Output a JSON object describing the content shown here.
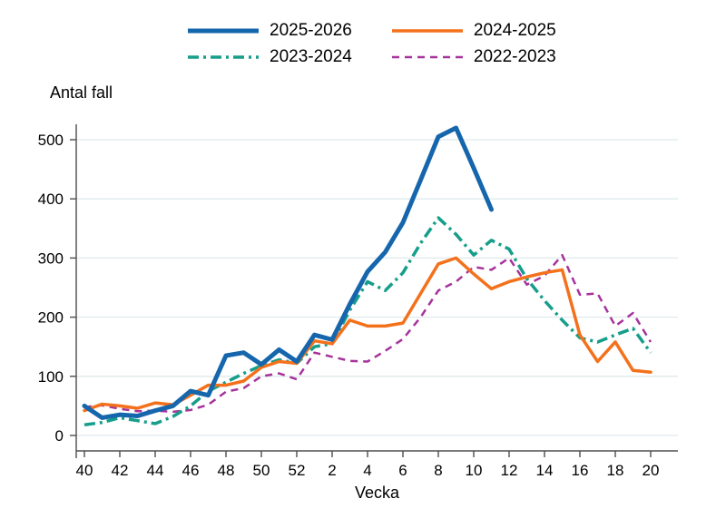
{
  "header": {
    "y_axis_title": "Antal fall",
    "x_axis_title": "Vecka"
  },
  "legend": [
    {
      "label": "2025-2026",
      "color": "#1566ac",
      "style": "solid",
      "width": 5
    },
    {
      "label": "2023-2024",
      "color": "#169e8a",
      "style": "dashdot",
      "width": 3.5
    },
    {
      "label": "2024-2025",
      "color": "#f4711c",
      "style": "solid",
      "width": 3.5
    },
    {
      "label": "2022-2023",
      "color": "#a6339b",
      "style": "dashed",
      "width": 2.5
    }
  ],
  "colors": {
    "gridline": "#dfeaec",
    "axis": "#4d4d4d"
  },
  "chart_data": {
    "type": "line",
    "title": "",
    "xlabel": "Vecka",
    "ylabel": "Antal fall",
    "grid": "horizontal",
    "legend_position": "top",
    "ylim": [
      0,
      500
    ],
    "y_ticks": [
      0,
      100,
      200,
      300,
      400,
      500
    ],
    "x_tick_labels": [
      "40",
      "42",
      "44",
      "46",
      "48",
      "50",
      "52",
      "2",
      "4",
      "6",
      "8",
      "10",
      "12",
      "14",
      "16",
      "18",
      "20"
    ],
    "categories": [
      "40",
      "41",
      "42",
      "43",
      "44",
      "45",
      "46",
      "47",
      "48",
      "49",
      "50",
      "51",
      "52",
      "1",
      "2",
      "3",
      "4",
      "5",
      "6",
      "7",
      "8",
      "9",
      "10",
      "11",
      "12",
      "13",
      "14",
      "15",
      "16",
      "17",
      "18",
      "19",
      "20"
    ],
    "series": [
      {
        "name": "2022-2023",
        "color": "#a6339b",
        "line_style": "dashed",
        "line_width": 2.5,
        "values": [
          48,
          51,
          45,
          41,
          42,
          40,
          43,
          52,
          74,
          80,
          100,
          105,
          95,
          140,
          133,
          126,
          125,
          143,
          163,
          200,
          245,
          260,
          285,
          280,
          300,
          255,
          270,
          305,
          238,
          240,
          185,
          207,
          158
        ]
      },
      {
        "name": "2023-2024",
        "color": "#169e8a",
        "line_style": "dashdot",
        "line_width": 3.5,
        "values": [
          18,
          22,
          30,
          25,
          20,
          32,
          50,
          75,
          90,
          105,
          118,
          128,
          122,
          150,
          155,
          212,
          260,
          245,
          275,
          325,
          368,
          340,
          305,
          330,
          315,
          265,
          228,
          195,
          165,
          158,
          170,
          181,
          140
        ]
      },
      {
        "name": "2024-2025",
        "color": "#f4711c",
        "line_style": "solid",
        "line_width": 3.5,
        "values": [
          42,
          53,
          50,
          46,
          55,
          52,
          68,
          85,
          85,
          92,
          115,
          125,
          122,
          160,
          155,
          195,
          185,
          185,
          190,
          240,
          290,
          300,
          273,
          248,
          260,
          268,
          275,
          280,
          170,
          125,
          158,
          110,
          107
        ]
      },
      {
        "name": "2025-2026",
        "color": "#1566ac",
        "line_style": "solid",
        "line_width": 5,
        "values": [
          50,
          30,
          35,
          33,
          42,
          50,
          75,
          68,
          135,
          140,
          120,
          145,
          125,
          170,
          162,
          222,
          277,
          310,
          360,
          432,
          505,
          520,
          452,
          382,
          null,
          null,
          null,
          null,
          null,
          null,
          null,
          null,
          null
        ]
      }
    ]
  }
}
